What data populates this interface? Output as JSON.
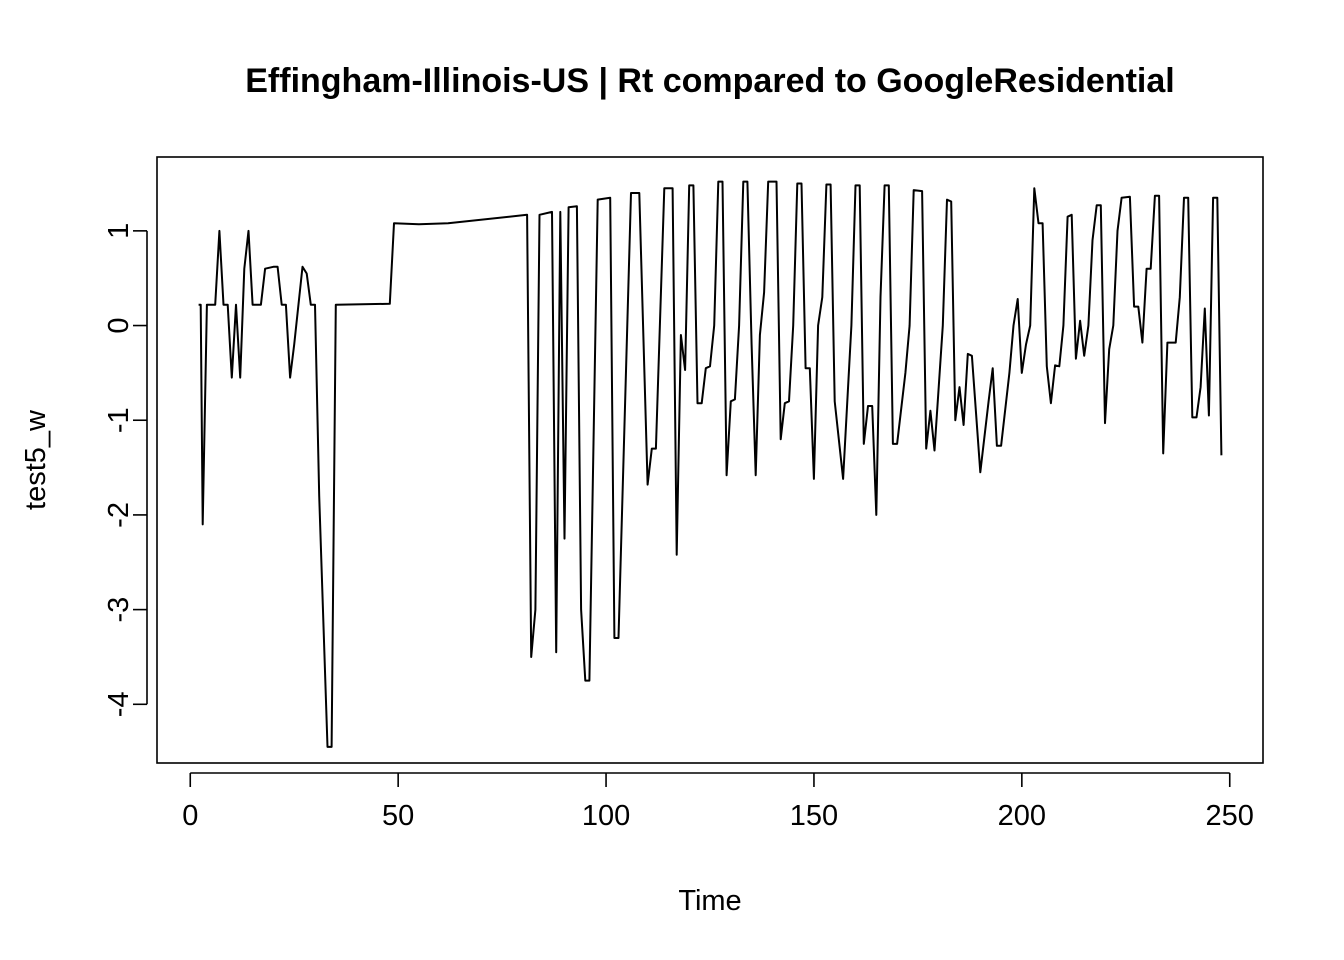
{
  "chart_data": {
    "type": "line",
    "title": "Effingham-Illinois-US | Rt compared to GoogleResidential",
    "xlabel": "Time",
    "ylabel": "test5_w",
    "xlim": [
      -8,
      258
    ],
    "ylim": [
      -4.62,
      1.78
    ],
    "xticks": [
      0,
      50,
      100,
      150,
      200,
      250
    ],
    "yticks": [
      -4,
      -3,
      -2,
      -1,
      0,
      1
    ],
    "xtick_labels": [
      "0",
      "50",
      "100",
      "150",
      "200",
      "250"
    ],
    "ytick_labels": [
      "-4",
      "-3",
      "-2",
      "-1",
      "0",
      "1"
    ],
    "grid": false,
    "series": [
      {
        "color": "#000000",
        "points": [
          [
            2,
            0.22
          ],
          [
            2.5,
            0.22
          ],
          [
            3,
            -2.1
          ],
          [
            4,
            0.22
          ],
          [
            5,
            0.22
          ],
          [
            6,
            0.22
          ],
          [
            7,
            1.0
          ],
          [
            8,
            0.22
          ],
          [
            9,
            0.22
          ],
          [
            10,
            -0.55
          ],
          [
            11,
            0.22
          ],
          [
            12,
            -0.55
          ],
          [
            13,
            0.6
          ],
          [
            14,
            1.0
          ],
          [
            15,
            0.22
          ],
          [
            16,
            0.22
          ],
          [
            17,
            0.22
          ],
          [
            18,
            0.6
          ],
          [
            20,
            0.62
          ],
          [
            21,
            0.62
          ],
          [
            22,
            0.22
          ],
          [
            23,
            0.22
          ],
          [
            24,
            -0.55
          ],
          [
            25,
            -0.2
          ],
          [
            27,
            0.62
          ],
          [
            28,
            0.55
          ],
          [
            29,
            0.22
          ],
          [
            30,
            0.22
          ],
          [
            31,
            -1.8
          ],
          [
            33,
            -4.45
          ],
          [
            34,
            -4.45
          ],
          [
            35,
            0.22
          ],
          [
            48,
            0.23
          ],
          [
            49,
            1.08
          ],
          [
            55,
            1.07
          ],
          [
            62,
            1.08
          ],
          [
            81,
            1.17
          ],
          [
            82,
            -3.5
          ],
          [
            83,
            -3.0
          ],
          [
            84,
            1.17
          ],
          [
            87,
            1.2
          ],
          [
            88,
            -3.45
          ],
          [
            89,
            1.2
          ],
          [
            90,
            -2.25
          ],
          [
            91,
            1.25
          ],
          [
            93,
            1.26
          ],
          [
            94,
            -3.0
          ],
          [
            95,
            -3.75
          ],
          [
            96,
            -3.75
          ],
          [
            98,
            1.33
          ],
          [
            101,
            1.35
          ],
          [
            102,
            -3.3
          ],
          [
            103,
            -3.3
          ],
          [
            106,
            1.4
          ],
          [
            108,
            1.4
          ],
          [
            110,
            -1.68
          ],
          [
            111,
            -1.3
          ],
          [
            112,
            -1.3
          ],
          [
            114,
            1.45
          ],
          [
            116,
            1.45
          ],
          [
            117,
            -2.42
          ],
          [
            118,
            -0.1
          ],
          [
            119,
            -0.47
          ],
          [
            120,
            1.48
          ],
          [
            121,
            1.48
          ],
          [
            122,
            -0.82
          ],
          [
            123,
            -0.82
          ],
          [
            124,
            -0.45
          ],
          [
            125,
            -0.43
          ],
          [
            126,
            0.0
          ],
          [
            127,
            1.52
          ],
          [
            128,
            1.52
          ],
          [
            129,
            -1.58
          ],
          [
            130,
            -0.8
          ],
          [
            131,
            -0.78
          ],
          [
            132,
            0.0
          ],
          [
            133,
            1.52
          ],
          [
            134,
            1.52
          ],
          [
            135,
            -0.2
          ],
          [
            136,
            -1.58
          ],
          [
            137,
            -0.1
          ],
          [
            138,
            0.35
          ],
          [
            139,
            1.52
          ],
          [
            141,
            1.52
          ],
          [
            142,
            -1.2
          ],
          [
            143,
            -0.82
          ],
          [
            144,
            -0.8
          ],
          [
            145,
            0.0
          ],
          [
            146,
            1.5
          ],
          [
            147,
            1.5
          ],
          [
            148,
            -0.45
          ],
          [
            149,
            -0.45
          ],
          [
            150,
            -1.62
          ],
          [
            151,
            0.0
          ],
          [
            152,
            0.3
          ],
          [
            153,
            1.49
          ],
          [
            154,
            1.49
          ],
          [
            155,
            -0.8
          ],
          [
            157,
            -1.62
          ],
          [
            159,
            0.0
          ],
          [
            160,
            1.48
          ],
          [
            161,
            1.48
          ],
          [
            162,
            -1.25
          ],
          [
            163,
            -0.85
          ],
          [
            164,
            -0.85
          ],
          [
            165,
            -2.0
          ],
          [
            166,
            0.3
          ],
          [
            167,
            1.48
          ],
          [
            168,
            1.48
          ],
          [
            169,
            -1.25
          ],
          [
            170,
            -1.25
          ],
          [
            172,
            -0.5
          ],
          [
            173,
            0.0
          ],
          [
            174,
            1.43
          ],
          [
            176,
            1.42
          ],
          [
            177,
            -1.3
          ],
          [
            178,
            -0.9
          ],
          [
            179,
            -1.32
          ],
          [
            181,
            0.0
          ],
          [
            182,
            1.33
          ],
          [
            183,
            1.31
          ],
          [
            184,
            -1.0
          ],
          [
            185,
            -0.65
          ],
          [
            186,
            -1.05
          ],
          [
            187,
            -0.3
          ],
          [
            188,
            -0.32
          ],
          [
            190,
            -1.55
          ],
          [
            192,
            -0.8
          ],
          [
            193,
            -0.45
          ],
          [
            194,
            -1.27
          ],
          [
            195,
            -1.27
          ],
          [
            197,
            -0.5
          ],
          [
            198,
            0.0
          ],
          [
            199,
            0.28
          ],
          [
            200,
            -0.5
          ],
          [
            201,
            -0.2
          ],
          [
            202,
            0.0
          ],
          [
            203,
            1.45
          ],
          [
            204,
            1.08
          ],
          [
            205,
            1.08
          ],
          [
            206,
            -0.43
          ],
          [
            207,
            -0.82
          ],
          [
            208,
            -0.42
          ],
          [
            209,
            -0.43
          ],
          [
            210,
            0.0
          ],
          [
            211,
            1.15
          ],
          [
            212,
            1.17
          ],
          [
            213,
            -0.35
          ],
          [
            214,
            0.05
          ],
          [
            215,
            -0.32
          ],
          [
            216,
            0.0
          ],
          [
            217,
            0.9
          ],
          [
            218,
            1.27
          ],
          [
            219,
            1.27
          ],
          [
            220,
            -1.03
          ],
          [
            221,
            -0.25
          ],
          [
            222,
            0.0
          ],
          [
            223,
            1.0
          ],
          [
            224,
            1.35
          ],
          [
            226,
            1.36
          ],
          [
            227,
            0.2
          ],
          [
            228,
            0.2
          ],
          [
            229,
            -0.18
          ],
          [
            230,
            0.6
          ],
          [
            231,
            0.6
          ],
          [
            232,
            1.37
          ],
          [
            233,
            1.37
          ],
          [
            234,
            -1.35
          ],
          [
            235,
            -0.18
          ],
          [
            237,
            -0.18
          ],
          [
            238,
            0.3
          ],
          [
            239,
            1.35
          ],
          [
            240,
            1.35
          ],
          [
            241,
            -0.97
          ],
          [
            242,
            -0.97
          ],
          [
            243,
            -0.65
          ],
          [
            244,
            0.18
          ],
          [
            245,
            -0.95
          ],
          [
            246,
            1.35
          ],
          [
            247,
            1.35
          ],
          [
            248,
            -1.37
          ]
        ]
      }
    ]
  }
}
